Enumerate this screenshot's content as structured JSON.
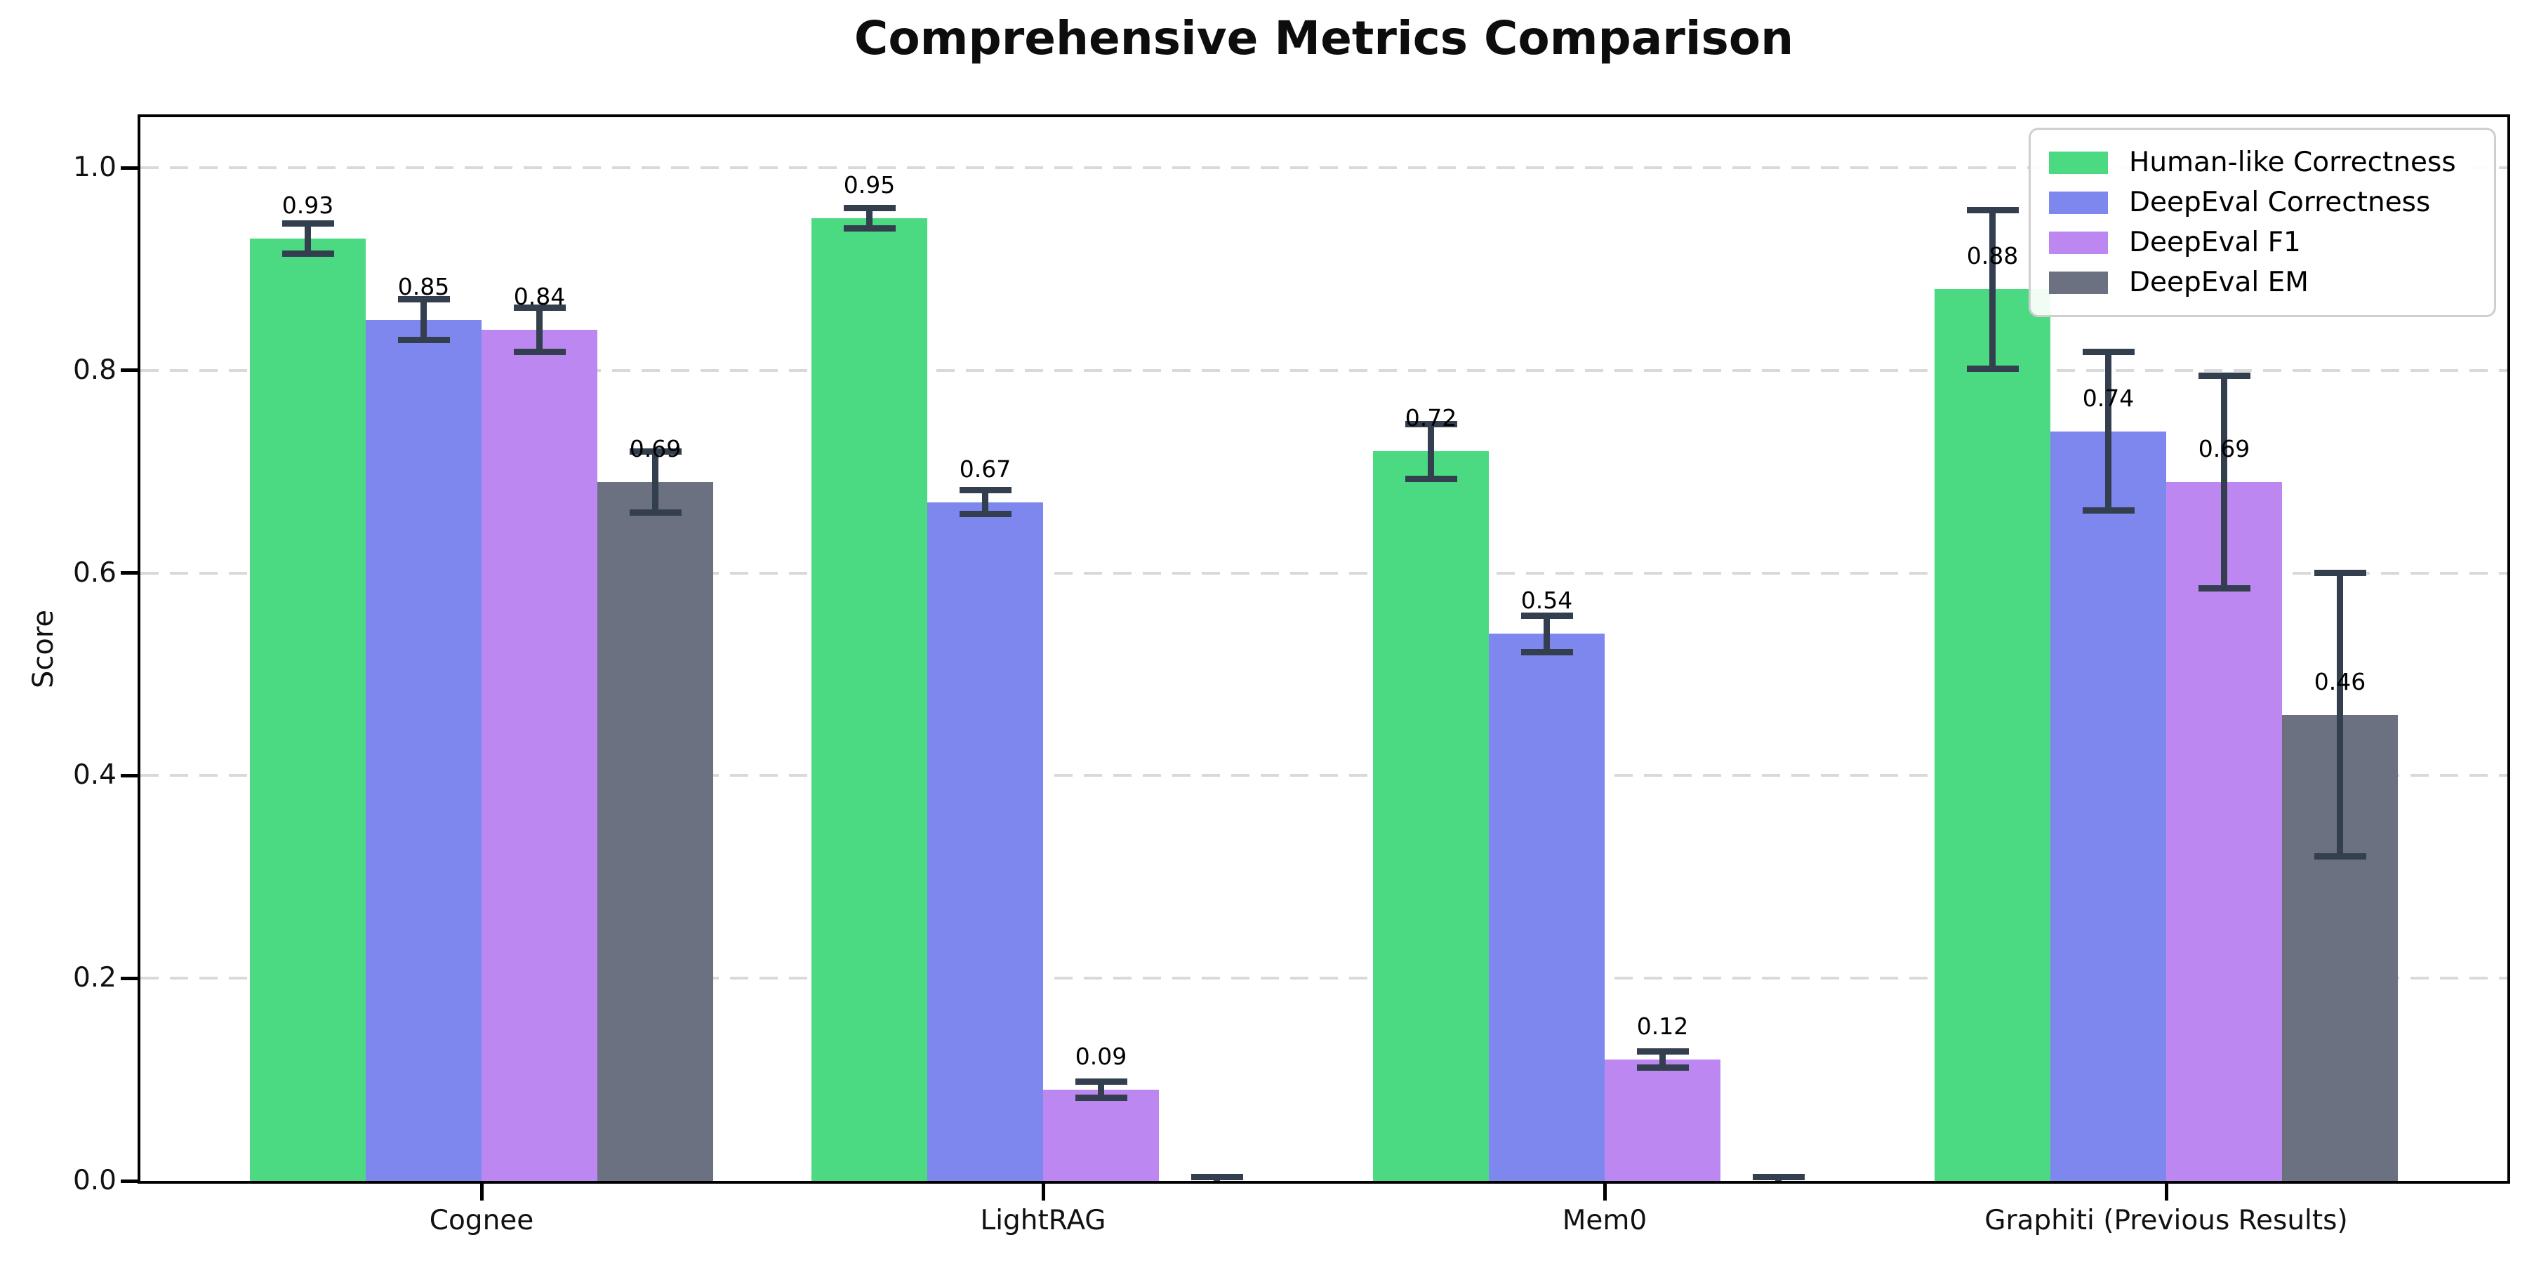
{
  "chart_data": {
    "type": "bar",
    "title": "Comprehensive Metrics Comparison",
    "ylabel": "Score",
    "xlabel": "",
    "ylim": [
      0,
      1.05
    ],
    "yticks": [
      {
        "v": 0.0,
        "label": "0.0"
      },
      {
        "v": 0.2,
        "label": "0.2"
      },
      {
        "v": 0.4,
        "label": "0.4"
      },
      {
        "v": 0.6,
        "label": "0.6"
      },
      {
        "v": 0.8,
        "label": "0.8"
      },
      {
        "v": 1.0,
        "label": "1.0"
      }
    ],
    "grid": "horizontal-dashed",
    "legend_position": "upper-right",
    "background_color": "#ffffff",
    "axis_color": "#000000",
    "gridline_color": "#d9d9d9",
    "errorbar_color": "#333f4e",
    "categories": [
      "Cognee",
      "LightRAG",
      "Mem0",
      "Graphiti (Previous Results)"
    ],
    "series": [
      {
        "name": "Human-like Correctness",
        "color": "#4bd981",
        "values": [
          0.93,
          0.95,
          0.72,
          0.88
        ],
        "errors": [
          0.015,
          0.01,
          0.027,
          0.078
        ],
        "labels": [
          "0.93",
          "0.95",
          "0.72",
          "0.88"
        ]
      },
      {
        "name": "DeepEval Correctness",
        "color": "#7d87ee",
        "values": [
          0.85,
          0.67,
          0.54,
          0.74
        ],
        "errors": [
          0.02,
          0.012,
          0.018,
          0.078
        ],
        "labels": [
          "0.85",
          "0.67",
          "0.54",
          "0.74"
        ]
      },
      {
        "name": "DeepEval F1",
        "color": "#bd87f2",
        "values": [
          0.84,
          0.09,
          0.12,
          0.69
        ],
        "errors": [
          0.022,
          0.008,
          0.008,
          0.105
        ],
        "labels": [
          "0.84",
          "0.09",
          "0.12",
          "0.69"
        ]
      },
      {
        "name": "DeepEval EM",
        "color": "#6b7180",
        "values": [
          0.69,
          0.0,
          0.0,
          0.46
        ],
        "errors": [
          0.03,
          0.004,
          0.004,
          0.14
        ],
        "labels": [
          "0.69",
          "",
          "",
          "0.46"
        ]
      }
    ]
  }
}
